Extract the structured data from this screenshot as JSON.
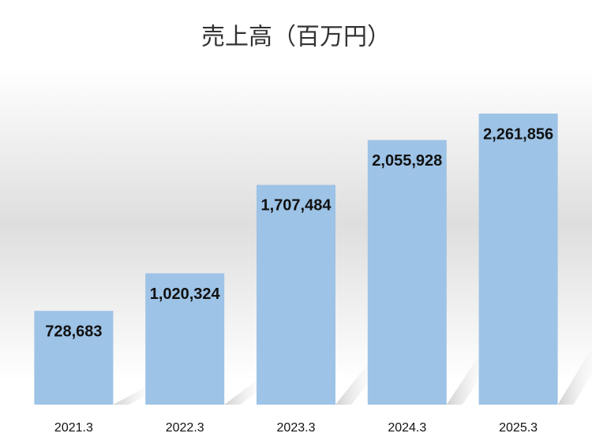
{
  "chart_data": {
    "type": "bar",
    "title": "売上高（百万円）",
    "categories": [
      "2021.3",
      "2022.3",
      "2023.3",
      "2024.3",
      "2025.3"
    ],
    "values": [
      728683,
      1020324,
      1707484,
      2055928,
      2261856
    ],
    "value_labels": [
      "728,683",
      "1,020,324",
      "1,707,484",
      "2,055,928",
      "2,261,856"
    ],
    "color": "#9dc3e6"
  }
}
